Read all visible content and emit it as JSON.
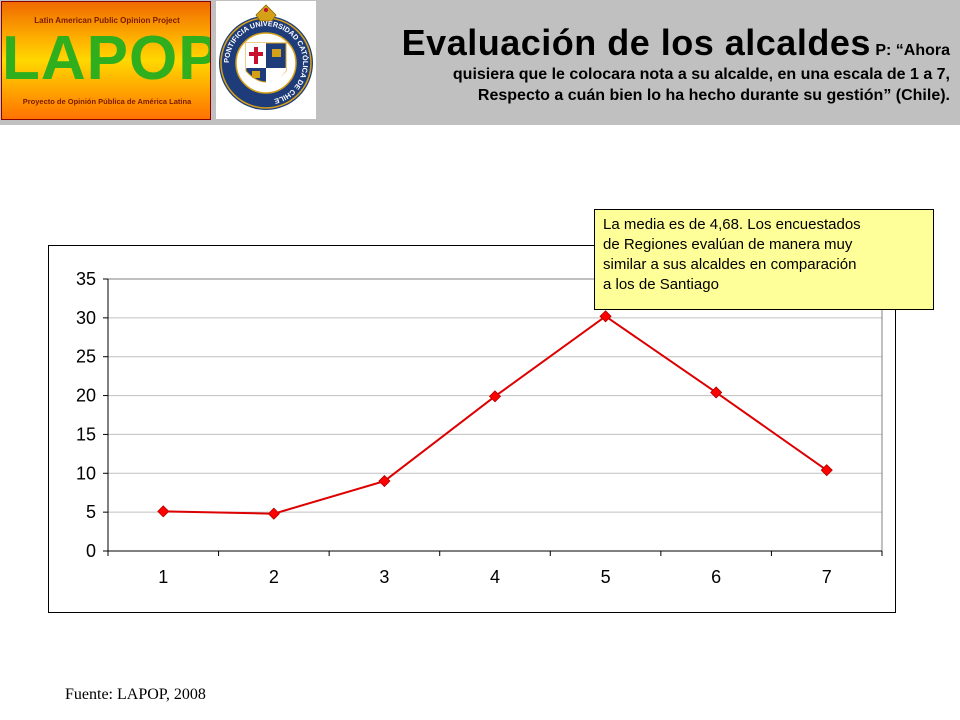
{
  "header": {
    "logo": {
      "top_text": "Latin American Public Opinion Project",
      "word": "LAPOP",
      "bottom_text": "Proyecto de Opinión Pública de América Latina"
    },
    "seal": {
      "ring_text": "PONTIFICIA UNIVERSIDAD CATÓLICA DE CHILE",
      "colors": {
        "ring": "#1f3c7a",
        "shield_red": "#c8102e",
        "gold": "#d4a017"
      }
    },
    "title": "Evaluación de los alcaldes",
    "question_prefix": "P: “Ahora",
    "question_line2": "quisiera que le colocara nota a su alcalde, en una escala de 1 a 7,",
    "question_line3": "Respecto a cuán bien lo ha hecho durante su gestión” (Chile)."
  },
  "chart_data": {
    "type": "line",
    "categories": [
      "1",
      "2",
      "3",
      "4",
      "5",
      "6",
      "7"
    ],
    "series": [
      {
        "values": [
          5.1,
          4.8,
          9.0,
          19.9,
          30.2,
          20.4,
          10.4
        ]
      }
    ],
    "ylim": [
      0,
      35
    ],
    "yticks": [
      "0",
      "5",
      "10",
      "15",
      "20",
      "25",
      "30",
      "35"
    ],
    "grid": true,
    "colors": {
      "line": "#dd0000",
      "marker": "#ff0000",
      "grid": "#c0c0c0"
    }
  },
  "note": {
    "line1": "La media es de 4,68. Los encuestados",
    "line2": "de  Regiones evalúan de manera muy",
    "line3": "similar a sus  alcaldes en comparación",
    "line4": "a los de Santiago"
  },
  "source": "Fuente: LAPOP, 2008"
}
